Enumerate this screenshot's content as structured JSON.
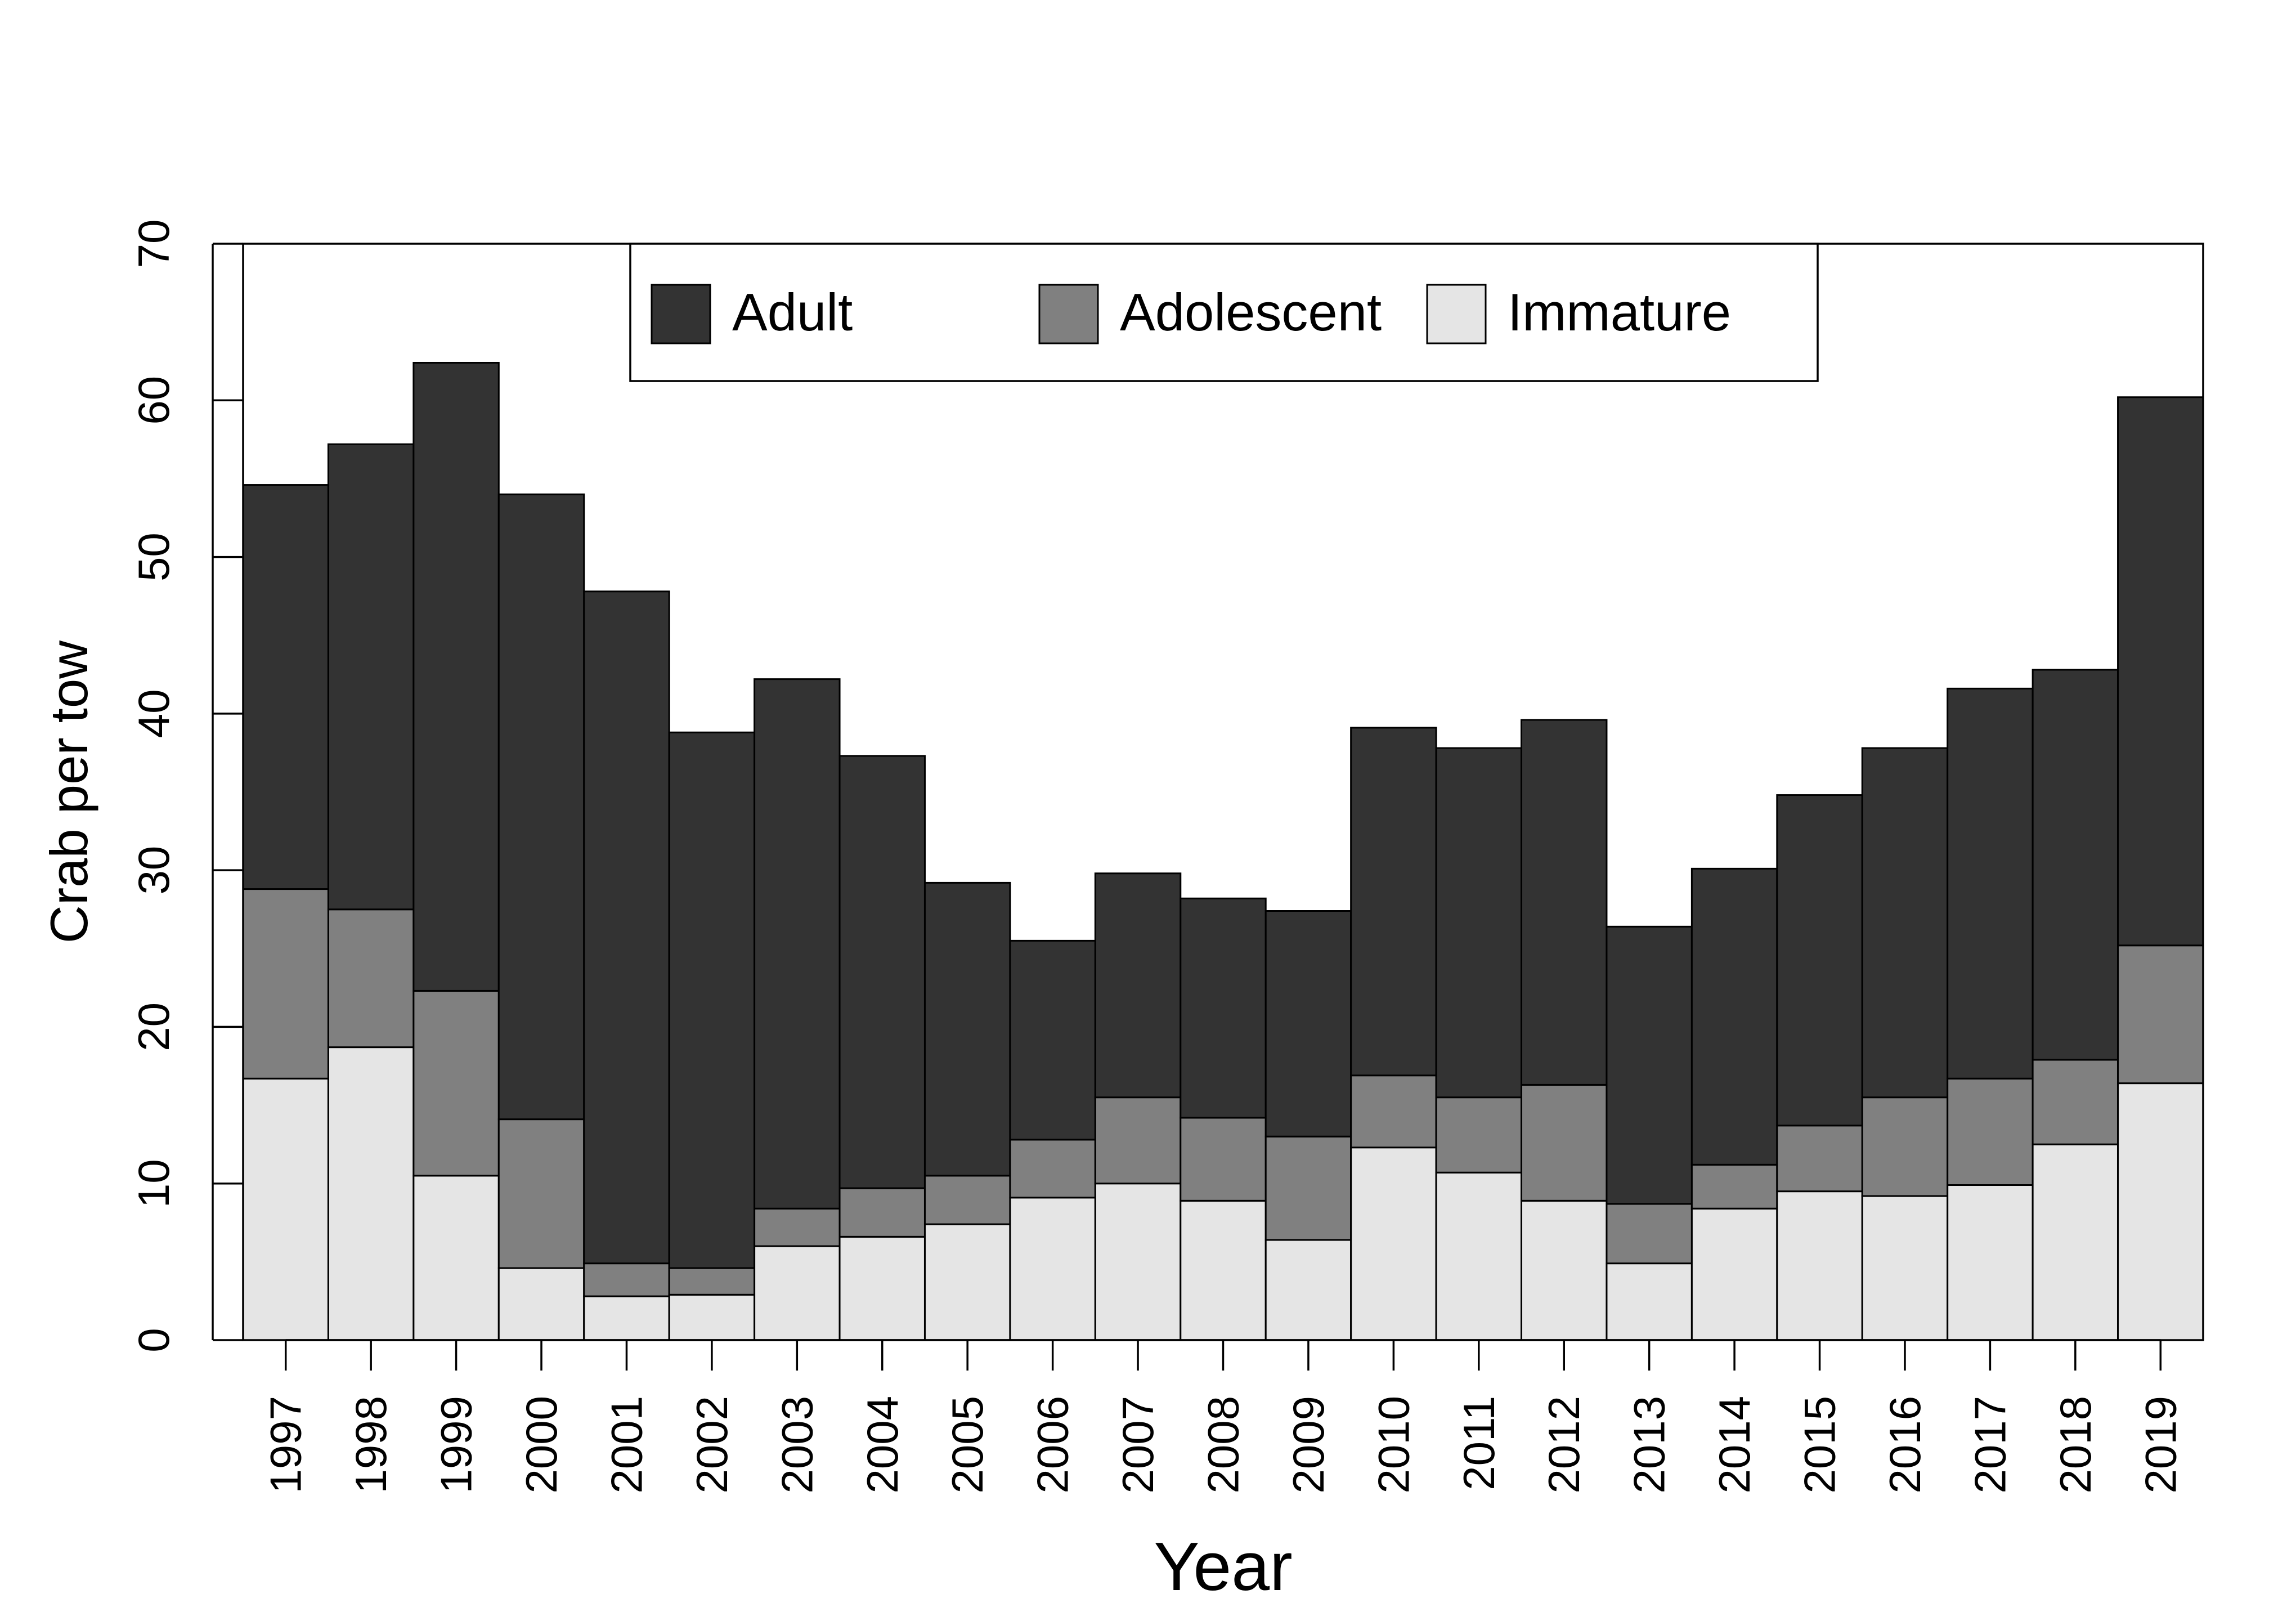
{
  "chart_data": {
    "type": "bar",
    "stacked": true,
    "xlabel": "Year",
    "ylabel": "Crab per tow",
    "ylim": [
      0,
      70
    ],
    "yticks": [
      0,
      10,
      20,
      30,
      40,
      50,
      60,
      70
    ],
    "categories": [
      "1997",
      "1998",
      "1999",
      "2000",
      "2001",
      "2002",
      "2003",
      "2004",
      "2005",
      "2006",
      "2007",
      "2008",
      "2009",
      "2010",
      "2011",
      "2012",
      "2013",
      "2014",
      "2015",
      "2016",
      "2017",
      "2018",
      "2019"
    ],
    "series": [
      {
        "name": "Immature",
        "color": "#e5e5e5",
        "values": [
          16.7,
          18.7,
          10.5,
          4.6,
          2.8,
          2.9,
          6.0,
          6.6,
          7.4,
          9.1,
          10.0,
          8.9,
          6.4,
          12.3,
          10.7,
          8.9,
          4.9,
          8.4,
          9.5,
          9.2,
          9.9,
          12.5,
          16.4
        ]
      },
      {
        "name": "Adolescent",
        "color": "#808080",
        "values": [
          12.1,
          8.8,
          11.8,
          9.5,
          2.1,
          1.7,
          2.4,
          3.1,
          3.1,
          3.7,
          5.5,
          5.3,
          6.6,
          4.6,
          4.8,
          7.4,
          3.8,
          2.8,
          4.2,
          6.3,
          6.8,
          5.4,
          8.8
        ]
      },
      {
        "name": "Adult",
        "color": "#333333",
        "values": [
          25.8,
          29.7,
          40.1,
          39.9,
          42.9,
          34.2,
          33.8,
          27.6,
          18.7,
          12.7,
          14.3,
          14.0,
          14.4,
          22.2,
          22.3,
          23.3,
          17.7,
          18.9,
          21.1,
          22.3,
          24.9,
          24.9,
          35.0
        ]
      }
    ],
    "legend": {
      "position": "top-center",
      "order": [
        "Adult",
        "Adolescent",
        "Immature"
      ]
    },
    "grid": false
  }
}
